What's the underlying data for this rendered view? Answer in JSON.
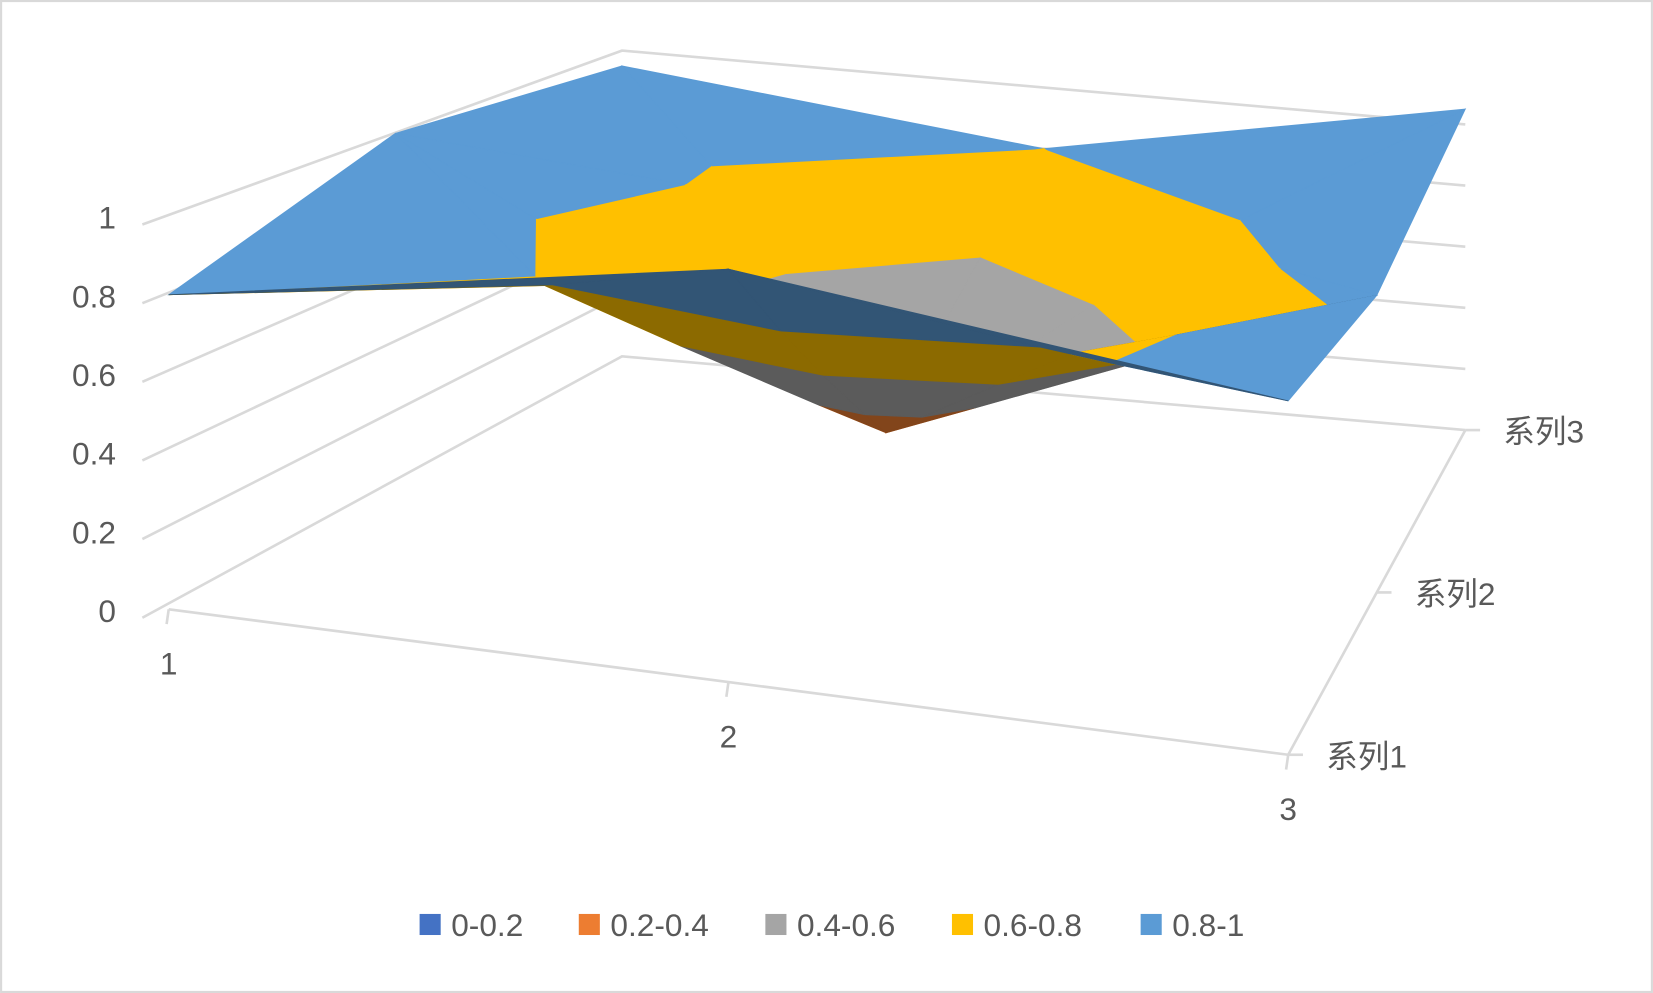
{
  "chart_data": {
    "type": "surface-3d",
    "title": "",
    "categories": [
      "1",
      "2",
      "3"
    ],
    "series": [
      {
        "name": "系列1",
        "values": [
          0.8,
          1.05,
          0.9
        ]
      },
      {
        "name": "系列2",
        "values": [
          1.0,
          0.3,
          0.85
        ]
      },
      {
        "name": "系列3",
        "values": [
          0.95,
          0.8,
          1.05
        ]
      }
    ],
    "z_ticks": [
      "0",
      "0.2",
      "0.4",
      "0.6",
      "0.8",
      "1"
    ],
    "zlim": [
      0,
      1
    ],
    "grid": true,
    "legend_position": "bottom",
    "bands": [
      {
        "label": "0-0.2",
        "min": 0,
        "max": 0.2,
        "color": "#4472C4"
      },
      {
        "label": "0.2-0.4",
        "min": 0.2,
        "max": 0.4,
        "color": "#ED7D31"
      },
      {
        "label": "0.4-0.6",
        "min": 0.4,
        "max": 0.6,
        "color": "#A5A5A5"
      },
      {
        "label": "0.6-0.8",
        "min": 0.6,
        "max": 0.8,
        "color": "#FFC000"
      },
      {
        "label": "0.8-1",
        "min": 0.8,
        "max": 1,
        "color": "#5B9BD5"
      }
    ]
  }
}
